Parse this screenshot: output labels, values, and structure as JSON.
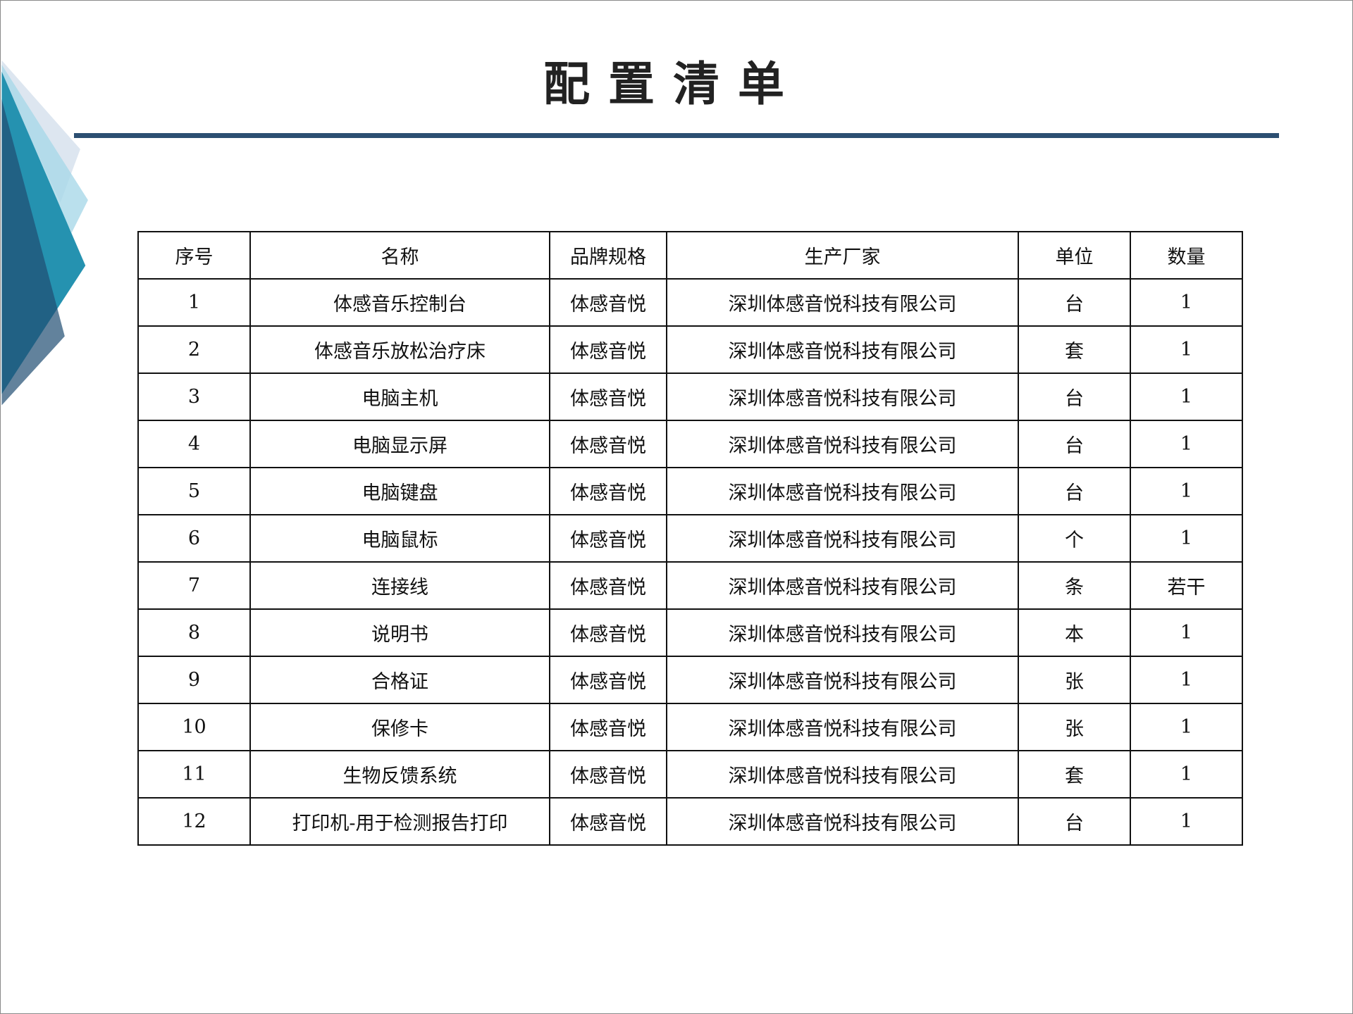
{
  "title": "配置清单",
  "colors": {
    "rule": "#2c4f72",
    "deco_dark": "#285f80",
    "deco_teal": "#2592b0",
    "deco_light": "#a9d8e8",
    "deco_pale": "#dde6f0"
  },
  "table": {
    "headers": [
      "序号",
      "名称",
      "品牌规格",
      "生产厂家",
      "单位",
      "数量"
    ],
    "rows": [
      [
        "1",
        "体感音乐控制台",
        "体感音悦",
        "深圳体感音悦科技有限公司",
        "台",
        "1"
      ],
      [
        "2",
        "体感音乐放松治疗床",
        "体感音悦",
        "深圳体感音悦科技有限公司",
        "套",
        "1"
      ],
      [
        "3",
        "电脑主机",
        "体感音悦",
        "深圳体感音悦科技有限公司",
        "台",
        "1"
      ],
      [
        "4",
        "电脑显示屏",
        "体感音悦",
        "深圳体感音悦科技有限公司",
        "台",
        "1"
      ],
      [
        "5",
        "电脑键盘",
        "体感音悦",
        "深圳体感音悦科技有限公司",
        "台",
        "1"
      ],
      [
        "6",
        "电脑鼠标",
        "体感音悦",
        "深圳体感音悦科技有限公司",
        "个",
        "1"
      ],
      [
        "7",
        "连接线",
        "体感音悦",
        "深圳体感音悦科技有限公司",
        "条",
        "若干"
      ],
      [
        "8",
        "说明书",
        "体感音悦",
        "深圳体感音悦科技有限公司",
        "本",
        "1"
      ],
      [
        "9",
        "合格证",
        "体感音悦",
        "深圳体感音悦科技有限公司",
        "张",
        "1"
      ],
      [
        "10",
        "保修卡",
        "体感音悦",
        "深圳体感音悦科技有限公司",
        "张",
        "1"
      ],
      [
        "11",
        "生物反馈系统",
        "体感音悦",
        "深圳体感音悦科技有限公司",
        "套",
        "1"
      ],
      [
        "12",
        "打印机-用于检测报告打印",
        "体感音悦",
        "深圳体感音悦科技有限公司",
        "台",
        "1"
      ]
    ]
  }
}
